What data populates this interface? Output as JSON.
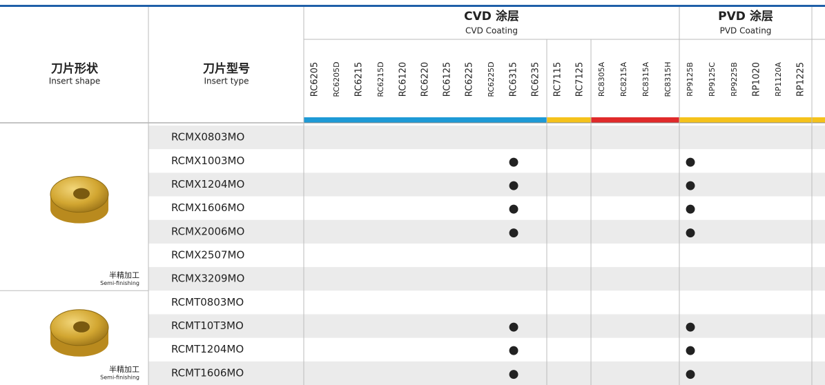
{
  "header": {
    "shape": {
      "zh": "刀片形状",
      "en": "Insert shape"
    },
    "type": {
      "zh": "刀片型号",
      "en": "Insert type"
    }
  },
  "groups": [
    {
      "title": "CVD 涂层",
      "subtitle": "CVD Coating",
      "sections": [
        {
          "color": "#1e9ad6",
          "grades": [
            "RC6205",
            "RC6205D",
            "RC6215",
            "RC6215D",
            "RC6120",
            "RC6220",
            "RC6125",
            "RC6225",
            "RC6225D",
            "RC6315",
            "RC6235"
          ]
        },
        {
          "color": "#f5c21b",
          "grades": [
            "RC7115",
            "RC7125"
          ]
        },
        {
          "color": "#e02a2a",
          "grades": [
            "RC8305A",
            "RC8215A",
            "RC8315A",
            "RC8315H"
          ]
        }
      ]
    },
    {
      "title": "PVD 涂层",
      "subtitle": "PVD Coating",
      "sections": [
        {
          "color": "#f5c21b",
          "grades": [
            "RP9125B",
            "RP9125C",
            "RP9225B",
            "RP1020",
            "RP1120A",
            "RP1225"
          ]
        }
      ]
    }
  ],
  "shapes": [
    {
      "label": "半精加工",
      "label_en": "Semi-finishing",
      "rows": [
        {
          "type": "RCMX0803MO",
          "marks": {}
        },
        {
          "type": "RCMX1003MO",
          "marks": {
            "RC6315": "●",
            "RP9125B": "●"
          }
        },
        {
          "type": "RCMX1204MO",
          "marks": {
            "RC6315": "●",
            "RP9125B": "●"
          }
        },
        {
          "type": "RCMX1606MO",
          "marks": {
            "RC6315": "●",
            "RP9125B": "●"
          }
        },
        {
          "type": "RCMX2006MO",
          "marks": {
            "RC6315": "●",
            "RP9125B": "●"
          }
        },
        {
          "type": "RCMX2507MO",
          "marks": {}
        },
        {
          "type": "RCMX3209MO",
          "marks": {}
        }
      ]
    },
    {
      "label": "半精加工",
      "label_en": "Semi-finishing",
      "rows": [
        {
          "type": "RCMT0803MO",
          "marks": {}
        },
        {
          "type": "RCMT10T3MO",
          "marks": {
            "RC6315": "●",
            "RP9125B": "●"
          }
        },
        {
          "type": "RCMT1204MO",
          "marks": {
            "RC6315": "●",
            "RP9125B": "●"
          }
        },
        {
          "type": "RCMT1606MO",
          "marks": {
            "RC6315": "●",
            "RP9125B": "●"
          }
        }
      ]
    }
  ]
}
